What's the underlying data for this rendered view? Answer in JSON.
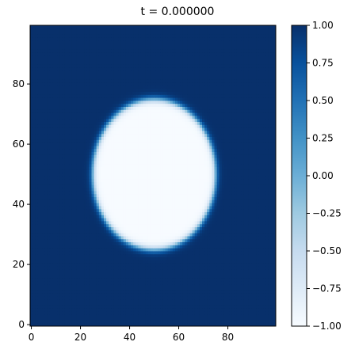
{
  "chart_data": {
    "type": "heatmap",
    "title": "t = 0.000000",
    "xlabel": "",
    "ylabel": "",
    "xlim": [
      -0.5,
      99.5
    ],
    "ylim": [
      -0.5,
      99.5
    ],
    "x_ticks": [
      0,
      20,
      40,
      60,
      80
    ],
    "y_ticks": [
      0,
      20,
      40,
      60,
      80
    ],
    "field": {
      "grid_size": [
        100,
        100
      ],
      "description_values": "phase field u(x,y): -1 inside ellipse, +1 outside, smooth tanh interface",
      "ellipse_center": [
        50,
        50
      ],
      "ellipse_semi_axes": [
        25,
        25
      ],
      "interface_width": 1.3,
      "inside_value": -1,
      "outside_value": 1
    },
    "colormap": {
      "name": "Blues",
      "vmin": -1.0,
      "vmax": 1.0,
      "stops": [
        "#f7fbff",
        "#deebf7",
        "#c6dbef",
        "#9ecae1",
        "#6baed6",
        "#4292c6",
        "#2171b5",
        "#08519c",
        "#08306b"
      ]
    },
    "colorbar_ticks": [
      "1.00",
      "0.75",
      "0.50",
      "0.25",
      "0.00",
      "−0.25",
      "−0.50",
      "−0.75",
      "−1.00"
    ],
    "colorbar_tick_values": [
      1.0,
      0.75,
      0.5,
      0.25,
      0.0,
      -0.25,
      -0.5,
      -0.75,
      -1.0
    ],
    "grid": false,
    "legend": "none"
  }
}
